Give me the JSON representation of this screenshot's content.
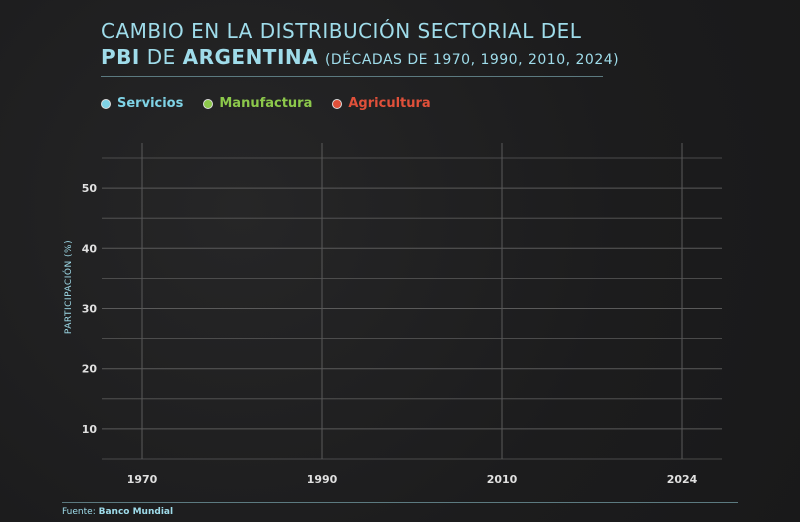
{
  "title": {
    "line1": "CAMBIO EN LA DISTRIBUCIÓN SECTORIAL DEL",
    "pbi": "PBI",
    "de": "DE",
    "country": "ARGENTINA",
    "subtitle": "(DÉCADAS DE 1970, 1990, 2010, 2024)"
  },
  "legend": [
    {
      "label": "Servicios",
      "color": "#7fd3e6"
    },
    {
      "label": "Manufactura",
      "color": "#8cc84b"
    },
    {
      "label": "Agricultura",
      "color": "#e0503a"
    }
  ],
  "footer": {
    "prefix": "Fuente:",
    "source": "Banco Mundial"
  },
  "colors": {
    "accent": "#9fdcea",
    "grid": "#5a5a5a",
    "text": "#d9d9d9"
  },
  "chart_data": {
    "type": "line",
    "x": [
      "1970",
      "1990",
      "2010",
      "2024"
    ],
    "series": [],
    "ylabel": "PARTICIPACIÓN (%)",
    "xlabel": "",
    "yticks": [
      10,
      20,
      30,
      40,
      50
    ],
    "ylim": [
      5,
      55
    ],
    "grid": true,
    "legend_position": "top-left"
  }
}
